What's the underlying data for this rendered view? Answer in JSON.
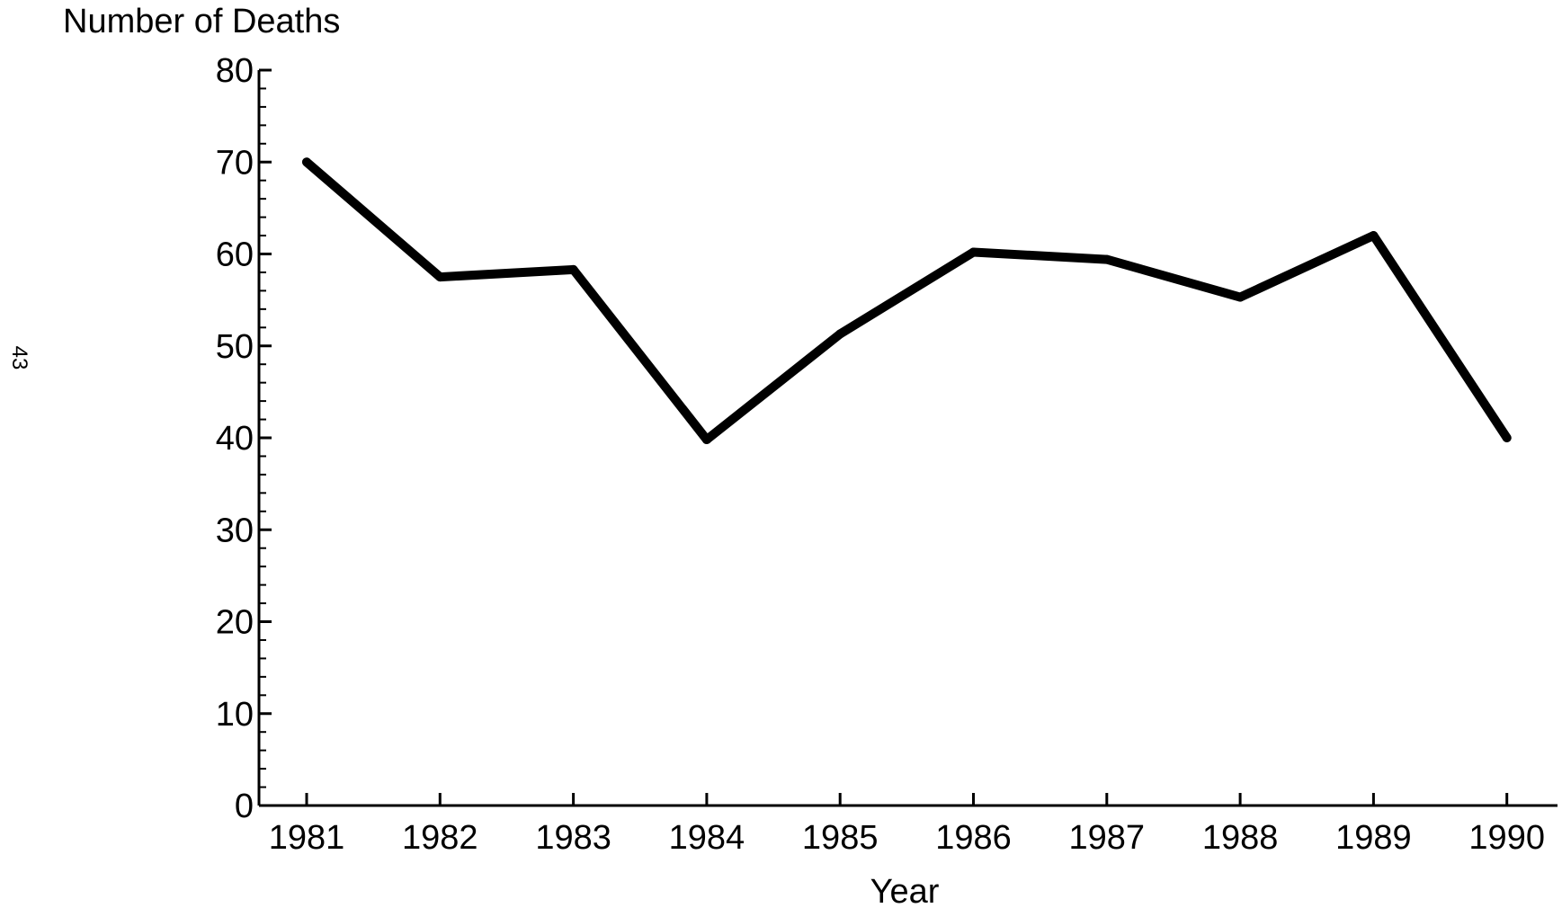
{
  "page_number": "43",
  "chart_data": {
    "type": "line",
    "title": "",
    "ylabel": "Number of Deaths",
    "xlabel": "Year",
    "categories": [
      "1981",
      "1982",
      "1983",
      "1984",
      "1985",
      "1986",
      "1987",
      "1988",
      "1989",
      "1990"
    ],
    "series": [
      {
        "values": [
          70,
          57.5,
          58.3,
          39.8,
          51.3,
          60.2,
          59.4,
          55.3,
          62,
          40
        ]
      }
    ],
    "ylim": [
      0,
      80
    ],
    "y_ticks": [
      0,
      10,
      20,
      30,
      40,
      50,
      60,
      70,
      80
    ],
    "y_minor_step": 2,
    "grid": false,
    "legend": "none",
    "line_color": "#000000"
  }
}
